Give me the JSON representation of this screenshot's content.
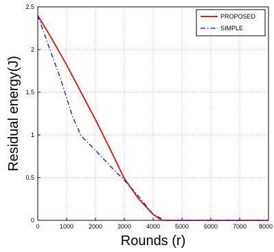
{
  "chart_data": {
    "type": "line",
    "xlabel": "Rounds (r)",
    "ylabel": "Residual energy(J)",
    "xlim": [
      0,
      8000
    ],
    "ylim": [
      0,
      2.5
    ],
    "grid": true,
    "legend_position": "top-right",
    "x_ticks": [
      "0",
      "1000",
      "2000",
      "3000",
      "4000",
      "5000",
      "6000",
      "7000",
      "8000"
    ],
    "y_ticks": [
      "0",
      "0.5",
      "1",
      "1.5",
      "2",
      "2.5"
    ],
    "series": [
      {
        "name": "PROPOSED",
        "color": "#e02020",
        "style": "solid",
        "points": [
          [
            0,
            2.4
          ],
          [
            500,
            2.12
          ],
          [
            1000,
            1.82
          ],
          [
            1500,
            1.5
          ],
          [
            2000,
            1.18
          ],
          [
            2500,
            0.84
          ],
          [
            3000,
            0.49
          ],
          [
            3500,
            0.25
          ],
          [
            4000,
            0.07
          ],
          [
            4300,
            0.0
          ],
          [
            5000,
            0.0
          ],
          [
            6000,
            0.0
          ],
          [
            7000,
            0.0
          ],
          [
            8000,
            0.0
          ]
        ]
      },
      {
        "name": "SIMPLE",
        "color": "#2a2ad8",
        "style": "dashdot",
        "points": [
          [
            0,
            2.4
          ],
          [
            400,
            2.02
          ],
          [
            800,
            1.65
          ],
          [
            1200,
            1.22
          ],
          [
            1500,
            0.99
          ],
          [
            2000,
            0.82
          ],
          [
            2500,
            0.64
          ],
          [
            3000,
            0.47
          ],
          [
            3500,
            0.28
          ],
          [
            4000,
            0.07
          ],
          [
            4400,
            0.0
          ],
          [
            5000,
            0.0
          ],
          [
            6000,
            0.0
          ],
          [
            7000,
            0.0
          ],
          [
            8000,
            0.0
          ]
        ]
      }
    ]
  }
}
